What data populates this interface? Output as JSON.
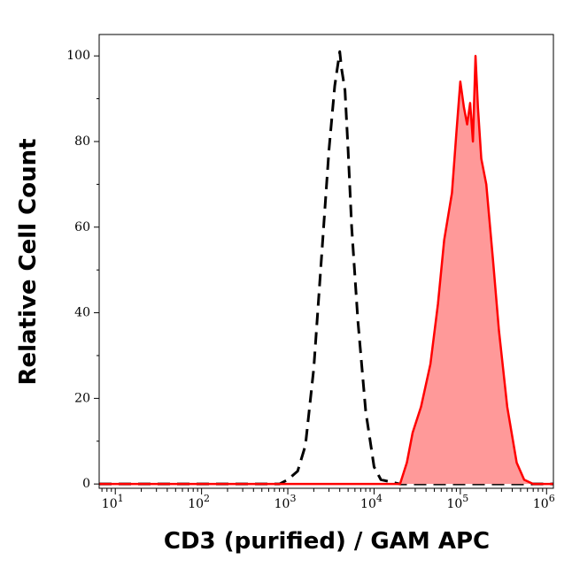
{
  "chart_data": {
    "type": "area",
    "title": "",
    "xlabel": "CD3 (purified) / GAM APC",
    "ylabel": "Relative Cell Count",
    "x_scale": "log",
    "xlim": [
      6.5,
      1200000
    ],
    "ylim": [
      -1,
      105
    ],
    "x_ticks": [
      {
        "value": 10,
        "base": "10",
        "exp": "1"
      },
      {
        "value": 100,
        "base": "10",
        "exp": "2"
      },
      {
        "value": 1000,
        "base": "10",
        "exp": "3"
      },
      {
        "value": 10000,
        "base": "10",
        "exp": "4"
      },
      {
        "value": 100000,
        "base": "10",
        "exp": "5"
      },
      {
        "value": 1000000,
        "base": "10",
        "exp": "6"
      }
    ],
    "y_ticks": [
      "0",
      "20",
      "40",
      "60",
      "80",
      "100"
    ],
    "grid": false,
    "legend": "none",
    "series": [
      {
        "style": "dashed",
        "color": "#000000",
        "fill": "none",
        "x": [
          6.5,
          100,
          800,
          1000,
          1300,
          1600,
          2000,
          2500,
          3000,
          3500,
          4000,
          4200,
          4600,
          5000,
          5500,
          6500,
          8000,
          10000,
          12000,
          20000,
          100000,
          300000,
          1200000
        ],
        "y": [
          0,
          0,
          0,
          1,
          3,
          9,
          27,
          55,
          78,
          93,
          101,
          97,
          92,
          78,
          60,
          38,
          17,
          4,
          1,
          0,
          0,
          0,
          0
        ]
      },
      {
        "style": "solid",
        "color": "#ff0000",
        "fill": "#ff9999",
        "x": [
          6.5,
          1000,
          20000,
          24000,
          28000,
          35000,
          45000,
          55000,
          65000,
          80000,
          90000,
          100000,
          110000,
          120000,
          130000,
          140000,
          150000,
          160000,
          175000,
          200000,
          240000,
          280000,
          350000,
          450000,
          550000,
          700000,
          1200000
        ],
        "y": [
          0,
          0,
          0,
          5,
          12,
          18,
          28,
          42,
          57,
          68,
          82,
          94,
          88,
          84,
          89,
          80,
          100,
          88,
          76,
          70,
          52,
          36,
          18,
          5,
          1,
          0,
          0
        ]
      }
    ]
  }
}
